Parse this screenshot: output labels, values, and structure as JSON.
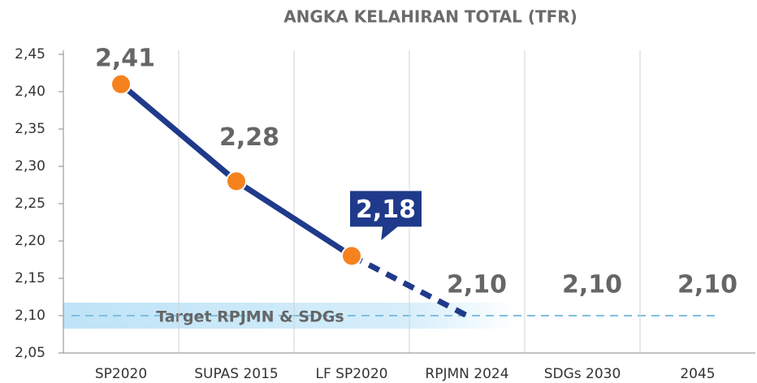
{
  "chart_data": {
    "type": "line",
    "title": "ANGKA KELAHIRAN TOTAL (TFR)",
    "categories": [
      "SP2020",
      "SUPAS 2015",
      "LF SP2020",
      "RPJMN 2024",
      "SDGs 2030",
      "2045"
    ],
    "values": [
      2.41,
      2.28,
      2.18,
      2.1,
      2.1,
      2.1
    ],
    "value_labels": [
      "2,41",
      "2,28",
      "2,18",
      "2,10",
      "2,10",
      "2,10"
    ],
    "line_color": "#1f3a8a",
    "marker_color": "#f5821f",
    "target": {
      "value": 2.1,
      "label": "Target RPJMN & SDGs"
    },
    "ylim": [
      2.05,
      2.45
    ],
    "yticks": [
      {
        "value": 2.05,
        "label": "2,05"
      },
      {
        "value": 2.1,
        "label": "2,10"
      },
      {
        "value": 2.15,
        "label": "2,15"
      },
      {
        "value": 2.2,
        "label": "2,20"
      },
      {
        "value": 2.25,
        "label": "2,25"
      },
      {
        "value": 2.3,
        "label": "2,30"
      },
      {
        "value": 2.35,
        "label": "2,35"
      },
      {
        "value": 2.4,
        "label": "2,40"
      },
      {
        "value": 2.45,
        "label": "2,45"
      }
    ]
  }
}
